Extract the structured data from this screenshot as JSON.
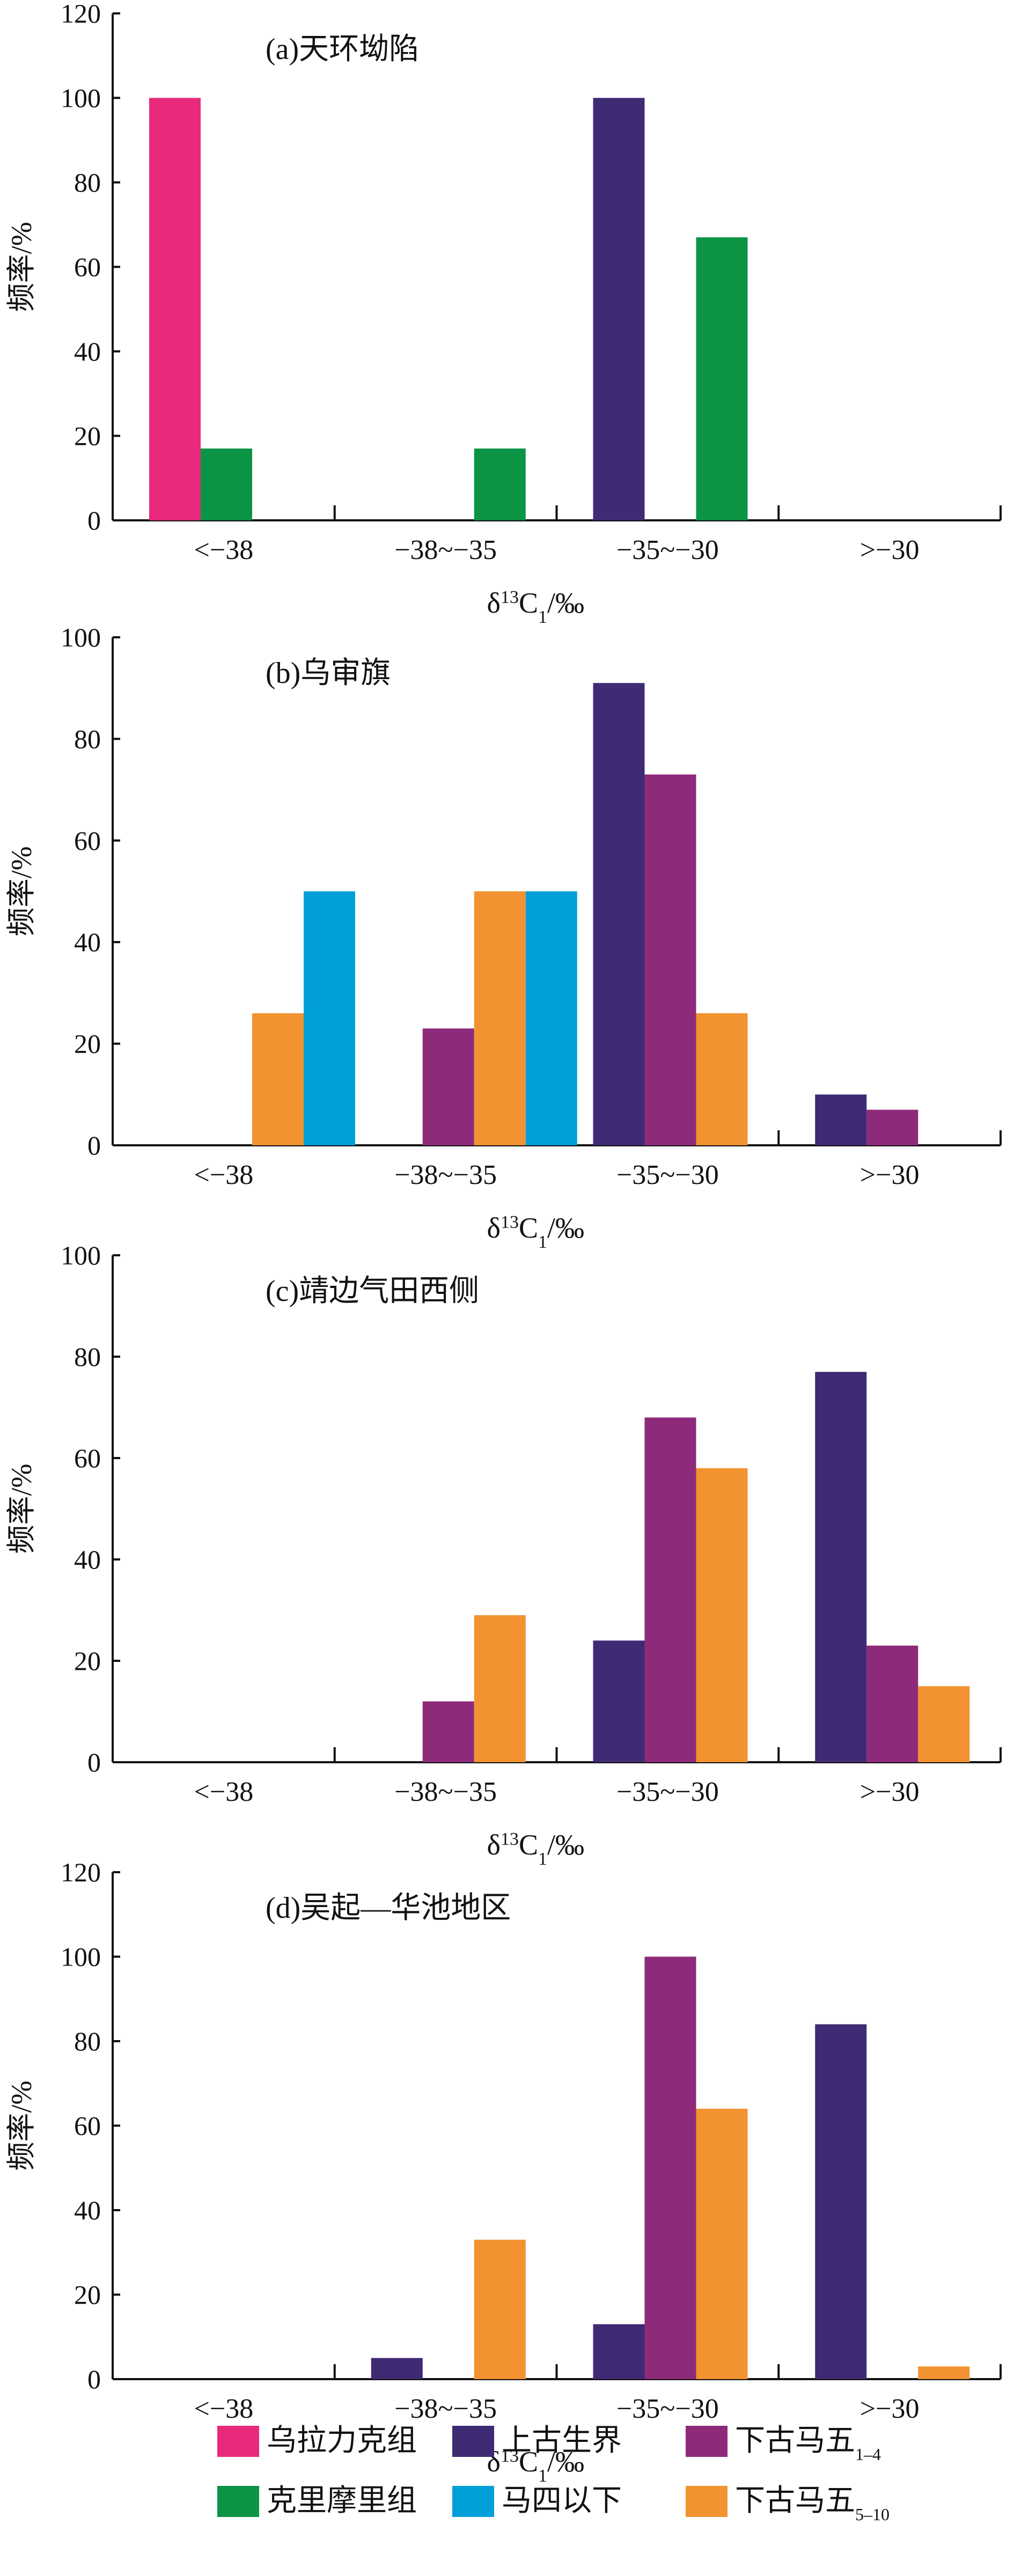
{
  "y_title": "频率/%",
  "x_title": {
    "prefix": "δ",
    "sup": "13",
    "main": "C",
    "sub": "1",
    "suffix": "/‰"
  },
  "colors": {
    "wulali": "#e8297c",
    "kelimoli": "#0a9444",
    "shanggu": "#3f2a74",
    "masi": "#009fda",
    "xiagu14": "#8e2a7a",
    "xiagu510": "#f29230"
  },
  "series": [
    {
      "key": "wulali",
      "name": "乌拉力克组",
      "sub": ""
    },
    {
      "key": "shanggu",
      "name": "上古生界",
      "sub": ""
    },
    {
      "key": "xiagu14",
      "name": "下古马五",
      "sub": "1–4"
    },
    {
      "key": "kelimoli",
      "name": "克里摩里组",
      "sub": ""
    },
    {
      "key": "masi",
      "name": "马四以下",
      "sub": ""
    },
    {
      "key": "xiagu510",
      "name": "下古马五",
      "sub": "5–10"
    }
  ],
  "chart_data": [
    {
      "type": "bar",
      "title": "(a)天环坳陷",
      "categories": [
        "<−38",
        "−38~−35",
        "−35~−30",
        ">−30"
      ],
      "ylim": [
        0,
        120
      ],
      "yticks": [
        0,
        20,
        40,
        60,
        80,
        100,
        120
      ],
      "series": [
        {
          "key": "wulali",
          "values": [
            100,
            0,
            0,
            0
          ]
        },
        {
          "key": "kelimoli",
          "values": [
            17,
            17,
            67,
            0
          ]
        },
        {
          "key": "shanggu",
          "values": [
            0,
            0,
            100,
            0
          ]
        }
      ]
    },
    {
      "type": "bar",
      "title": "(b)乌审旗",
      "categories": [
        "<−38",
        "−38~−35",
        "−35~−30",
        ">−30"
      ],
      "ylim": [
        0,
        100
      ],
      "yticks": [
        0,
        20,
        40,
        60,
        80,
        100
      ],
      "series": [
        {
          "key": "shanggu",
          "values": [
            0,
            0,
            91,
            10
          ]
        },
        {
          "key": "xiagu14",
          "values": [
            0,
            23,
            73,
            7
          ]
        },
        {
          "key": "xiagu510",
          "values": [
            26,
            50,
            26,
            0
          ]
        },
        {
          "key": "masi",
          "values": [
            50,
            50,
            0,
            0
          ]
        }
      ]
    },
    {
      "type": "bar",
      "title": "(c)靖边气田西侧",
      "categories": [
        "<−38",
        "−38~−35",
        "−35~−30",
        ">−30"
      ],
      "ylim": [
        0,
        100
      ],
      "yticks": [
        0,
        20,
        40,
        60,
        80,
        100
      ],
      "series": [
        {
          "key": "shanggu",
          "values": [
            0,
            0,
            24,
            77
          ]
        },
        {
          "key": "xiagu14",
          "values": [
            0,
            12,
            68,
            23
          ]
        },
        {
          "key": "xiagu510",
          "values": [
            0,
            29,
            58,
            15
          ]
        }
      ]
    },
    {
      "type": "bar",
      "title": "(d)吴起—华池地区",
      "categories": [
        "<−38",
        "−38~−35",
        "−35~−30",
        ">−30"
      ],
      "ylim": [
        0,
        120
      ],
      "yticks": [
        0,
        20,
        40,
        60,
        80,
        100,
        120
      ],
      "series": [
        {
          "key": "shanggu",
          "values": [
            0,
            5,
            13,
            84
          ]
        },
        {
          "key": "xiagu14",
          "values": [
            0,
            0,
            100,
            0
          ]
        },
        {
          "key": "xiagu510",
          "values": [
            0,
            33,
            64,
            3
          ]
        }
      ]
    }
  ]
}
